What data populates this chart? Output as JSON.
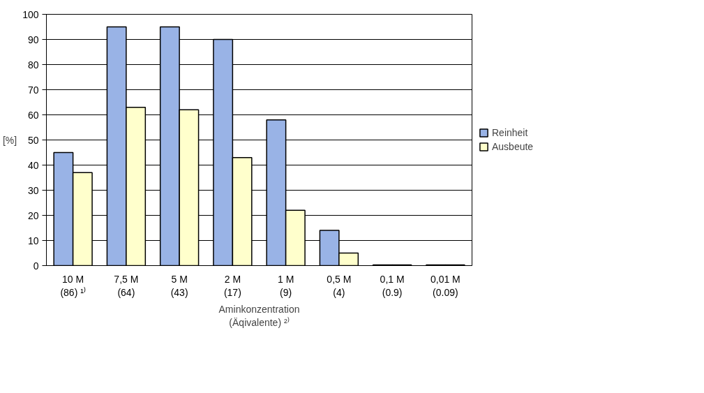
{
  "chart_data": {
    "type": "bar",
    "categories": [
      "10 M\n(86) ¹⁾",
      "7,5 M\n(64)",
      "5 M\n(43)",
      "2 M\n(17)",
      "1 M\n(9)",
      "0,5 M\n(4)",
      "0,1 M\n(0.9)",
      "0,01 M\n(0.09)"
    ],
    "series": [
      {
        "name": "Reinheit",
        "color": "#99b3e6",
        "values": [
          45,
          95,
          95,
          90,
          58,
          14,
          0.3,
          0.3
        ]
      },
      {
        "name": "Ausbeute",
        "color": "#ffffcc",
        "values": [
          37,
          63,
          62,
          43,
          22,
          5,
          0.3,
          0.3
        ]
      }
    ],
    "xlabel": "Aminkonzentration\n(Äqivalente) ²⁾",
    "ylabel": "[%]",
    "ylim": [
      0,
      100
    ],
    "yticks": [
      0,
      10,
      20,
      30,
      40,
      50,
      60,
      70,
      80,
      90,
      100
    ],
    "grid": "y",
    "legend": "right"
  }
}
